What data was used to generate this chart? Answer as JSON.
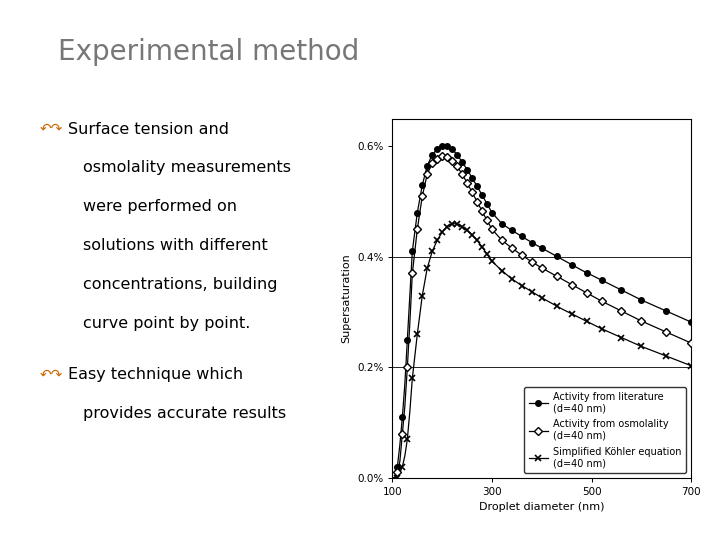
{
  "title": "Experimental method",
  "title_fontsize": 20,
  "title_color": "#777777",
  "background_color": "#ffffff",
  "border_color": "#cccccc",
  "bullet1_lines": [
    "Surface tension and",
    "osmolality measurements",
    "were performed on",
    "solutions with different",
    "concentrations, building",
    "curve point by point."
  ],
  "bullet2_lines": [
    "Easy technique which",
    "provides accurate results"
  ],
  "bullet_color": "#cc6600",
  "text_color": "#000000",
  "text_fontsize": 11.5,
  "xlabel": "Droplet diameter (nm)",
  "ylabel": "Supersaturation",
  "xlim": [
    100,
    700
  ],
  "ylim": [
    0.0,
    0.65
  ],
  "yticks": [
    0.0,
    0.2,
    0.4,
    0.6
  ],
  "ytick_labels": [
    "0.0%",
    "0.2%",
    "0.4%",
    "0.6%"
  ],
  "xticks": [
    100,
    300,
    500,
    700
  ],
  "xtick_labels": [
    "100",
    "300",
    "500",
    "700"
  ],
  "legend_labels": [
    "Activity from literature\n(d=40 nm)",
    "Activity from osmolality\n(d=40 nm)",
    "Simplified Köhler equation\n(d=40 nm)"
  ],
  "series1_x": [
    100,
    105,
    110,
    115,
    120,
    125,
    130,
    135,
    140,
    150,
    160,
    170,
    180,
    190,
    200,
    210,
    220,
    230,
    240,
    250,
    260,
    270,
    280,
    290,
    300,
    320,
    340,
    360,
    380,
    400,
    420,
    440,
    460,
    480,
    500,
    520,
    540,
    560,
    580,
    600,
    620,
    640,
    660,
    680,
    700
  ],
  "series1_y": [
    0.0,
    0.0,
    0.02,
    0.06,
    0.11,
    0.17,
    0.25,
    0.33,
    0.41,
    0.48,
    0.53,
    0.565,
    0.585,
    0.595,
    0.6,
    0.6,
    0.595,
    0.585,
    0.572,
    0.558,
    0.543,
    0.528,
    0.512,
    0.496,
    0.48,
    0.46,
    0.448,
    0.437,
    0.426,
    0.416,
    0.406,
    0.396,
    0.386,
    0.376,
    0.367,
    0.358,
    0.349,
    0.34,
    0.331,
    0.322,
    0.314,
    0.306,
    0.298,
    0.29,
    0.282
  ],
  "series2_x": [
    100,
    105,
    110,
    115,
    120,
    125,
    130,
    135,
    140,
    150,
    160,
    170,
    180,
    190,
    200,
    210,
    220,
    230,
    240,
    250,
    260,
    270,
    280,
    290,
    300,
    320,
    340,
    360,
    380,
    400,
    420,
    440,
    460,
    480,
    500,
    520,
    540,
    560,
    580,
    600,
    620,
    640,
    660,
    680,
    700
  ],
  "series2_y": [
    0.0,
    0.0,
    0.01,
    0.03,
    0.08,
    0.13,
    0.2,
    0.28,
    0.37,
    0.45,
    0.51,
    0.55,
    0.57,
    0.578,
    0.582,
    0.58,
    0.574,
    0.564,
    0.55,
    0.534,
    0.517,
    0.5,
    0.483,
    0.466,
    0.45,
    0.43,
    0.416,
    0.403,
    0.391,
    0.38,
    0.37,
    0.36,
    0.35,
    0.34,
    0.33,
    0.32,
    0.311,
    0.302,
    0.293,
    0.284,
    0.276,
    0.268,
    0.26,
    0.252,
    0.244
  ],
  "series3_x": [
    100,
    105,
    110,
    115,
    120,
    125,
    130,
    135,
    140,
    150,
    160,
    170,
    180,
    190,
    200,
    210,
    220,
    230,
    240,
    250,
    260,
    270,
    280,
    290,
    300,
    320,
    340,
    360,
    380,
    400,
    420,
    440,
    460,
    480,
    500,
    520,
    540,
    560,
    580,
    600,
    620,
    640,
    660,
    680,
    700
  ],
  "series3_y": [
    0.0,
    0.0,
    0.0,
    0.01,
    0.02,
    0.04,
    0.07,
    0.12,
    0.18,
    0.26,
    0.33,
    0.38,
    0.41,
    0.43,
    0.445,
    0.455,
    0.46,
    0.46,
    0.455,
    0.448,
    0.44,
    0.43,
    0.418,
    0.405,
    0.392,
    0.375,
    0.36,
    0.348,
    0.337,
    0.326,
    0.316,
    0.306,
    0.297,
    0.288,
    0.279,
    0.27,
    0.262,
    0.254,
    0.246,
    0.238,
    0.231,
    0.224,
    0.217,
    0.21,
    0.203
  ],
  "marker1_x": [
    110,
    120,
    130,
    140,
    150,
    160,
    170,
    180,
    190,
    200,
    210,
    220,
    230,
    240,
    250,
    260,
    270,
    280,
    290,
    300,
    320,
    340,
    360,
    380,
    400,
    430,
    460,
    490,
    520,
    560,
    600,
    650,
    700
  ],
  "marker2_x": [
    110,
    120,
    130,
    140,
    150,
    160,
    170,
    180,
    190,
    200,
    210,
    220,
    230,
    240,
    250,
    260,
    270,
    280,
    290,
    300,
    320,
    340,
    360,
    380,
    400,
    430,
    460,
    490,
    520,
    560,
    600,
    650,
    700
  ],
  "marker3_x": [
    110,
    120,
    130,
    140,
    150,
    160,
    170,
    180,
    190,
    200,
    210,
    220,
    230,
    240,
    250,
    260,
    270,
    280,
    290,
    300,
    320,
    340,
    360,
    380,
    400,
    430,
    460,
    490,
    520,
    560,
    600,
    650,
    700
  ]
}
